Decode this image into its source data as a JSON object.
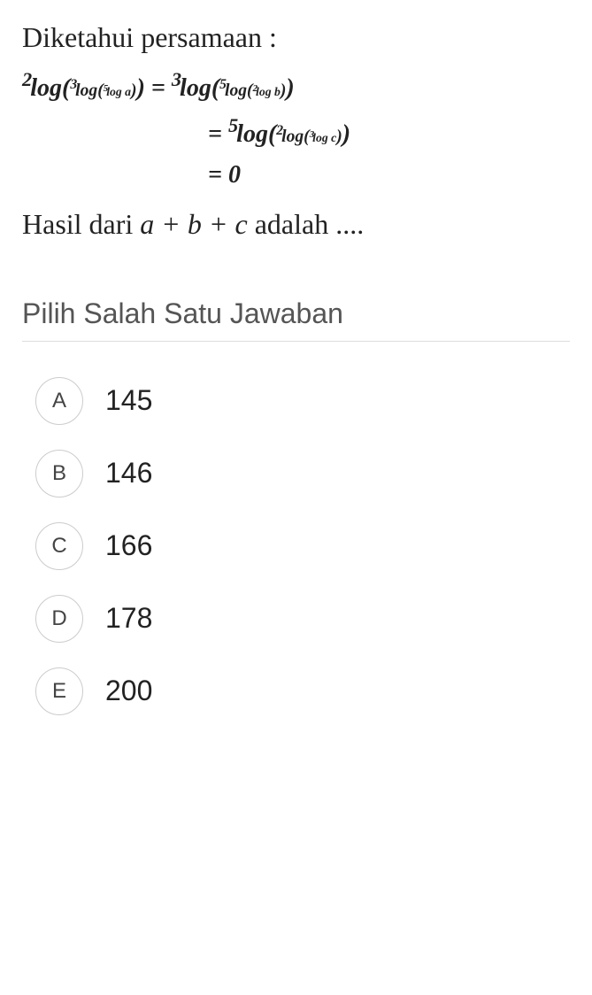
{
  "question": {
    "intro": "Diketahui persamaan :",
    "math_lines": [
      "²log(³log(⁵log a)) = ³log(⁵log(²log b))",
      "= ⁵log(²log(³log c))",
      "= 0"
    ],
    "result_prefix": "Hasil  dari ",
    "result_expr": "a + b + c",
    "result_suffix": " adalah ...."
  },
  "section_title": "Pilih Salah Satu Jawaban",
  "options": [
    {
      "letter": "A",
      "value": "145"
    },
    {
      "letter": "B",
      "value": "146"
    },
    {
      "letter": "C",
      "value": "166"
    },
    {
      "letter": "D",
      "value": "178"
    },
    {
      "letter": "E",
      "value": "200"
    }
  ]
}
